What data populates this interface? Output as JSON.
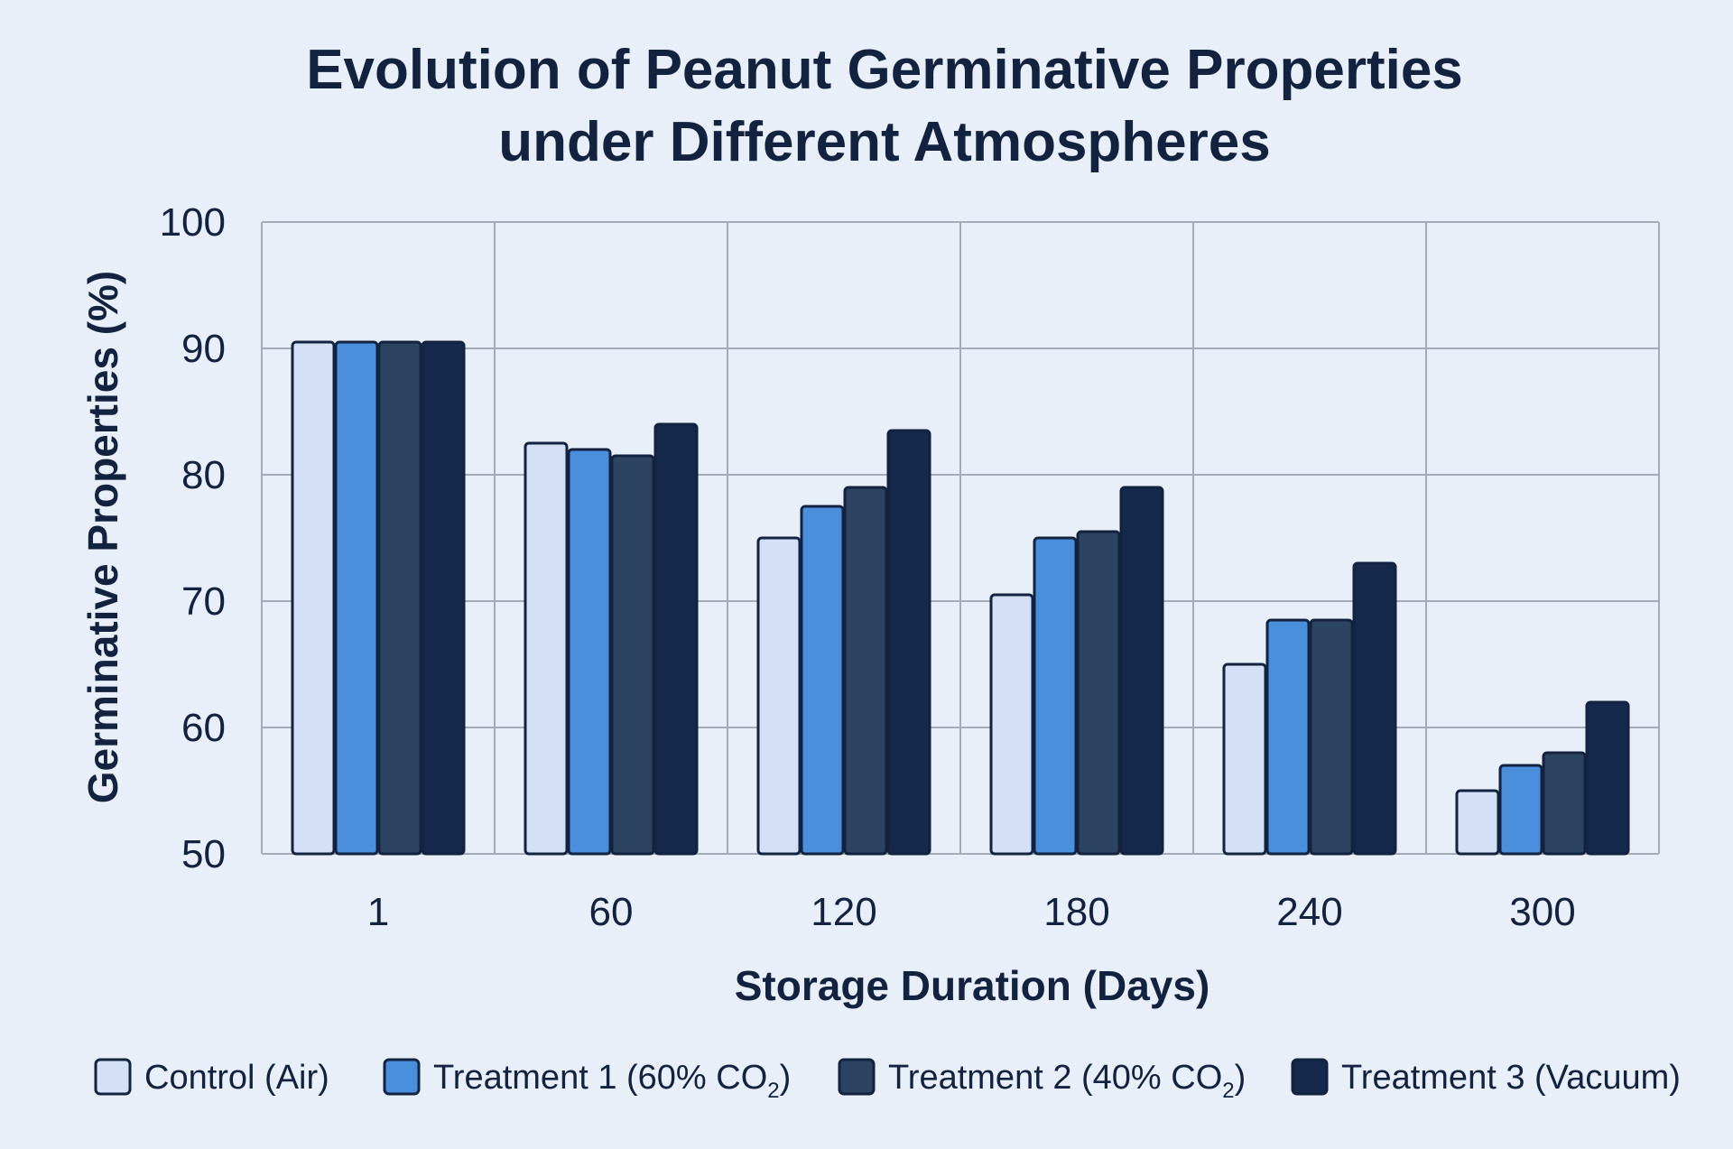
{
  "chart_data": {
    "type": "bar",
    "title_lines": [
      "Evolution of Peanut Germinative Properties",
      "under Different Atmospheres"
    ],
    "xlabel": "Storage Duration (Days)",
    "ylabel": "Germinative Properties (%)",
    "ylim": [
      50,
      100
    ],
    "yticks": [
      "50",
      "60",
      "70",
      "80",
      "90",
      "100"
    ],
    "categories": [
      "1",
      "60",
      "120",
      "180",
      "240",
      "300"
    ],
    "grid": true,
    "legend_position": "bottom",
    "series": [
      {
        "name": "Control (Air)",
        "legend_base": "Control (Air)",
        "legend_sub": "",
        "legend_tail": "",
        "color": "#d3e0f5",
        "values": [
          90.5,
          82.5,
          75,
          70.5,
          65,
          55
        ]
      },
      {
        "name": "Treatment 1 (60% CO2)",
        "legend_base": "Treatment 1 (60% CO",
        "legend_sub": "2",
        "legend_tail": ")",
        "color": "#4a8fdb",
        "values": [
          90.5,
          82,
          77.5,
          75,
          68.5,
          57
        ]
      },
      {
        "name": "Treatment 2 (40% CO2)",
        "legend_base": "Treatment 2 (40% CO",
        "legend_sub": "2",
        "legend_tail": ")",
        "color": "#2d4460",
        "values": [
          90.5,
          81.5,
          79,
          75.5,
          68.5,
          58
        ]
      },
      {
        "name": "Treatment 3 (Vacuum)",
        "legend_base": "Treatment 3 (Vacuum)",
        "legend_sub": "",
        "legend_tail": "",
        "color": "#15294d",
        "values": [
          90.5,
          84,
          83.5,
          79,
          73,
          62
        ]
      }
    ]
  }
}
